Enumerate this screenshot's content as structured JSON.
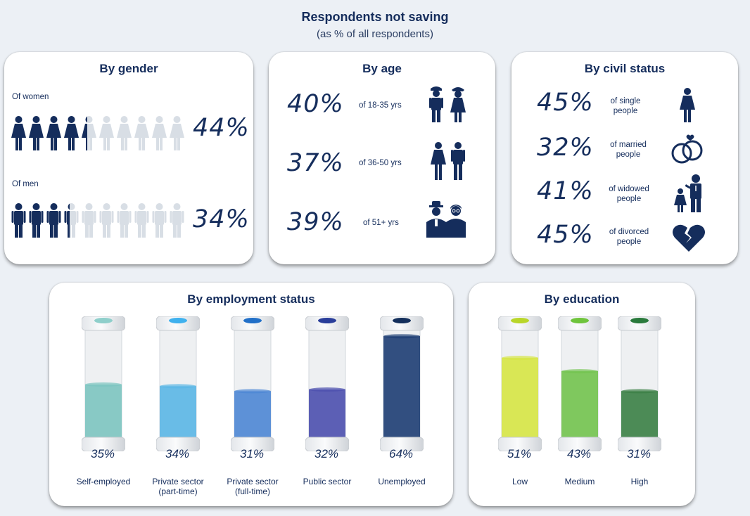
{
  "title": "Respondents not saving",
  "subtitle": "(as % of all respondents)",
  "colors": {
    "navy": "#152d5c",
    "grey_person": "#d8dee5"
  },
  "gender": {
    "title": "By gender",
    "women_label": "Of women",
    "women_pct": "44%",
    "women_value": 44,
    "men_label": "Of men",
    "men_pct": "34%",
    "men_value": 34
  },
  "age": {
    "title": "By age",
    "rows": [
      {
        "pct": "40%",
        "label": "of 18-35 yrs",
        "icon": "young-couple-icon"
      },
      {
        "pct": "37%",
        "label": "of 36-50 yrs",
        "icon": "adult-couple-icon"
      },
      {
        "pct": "39%",
        "label": "of 51+ yrs",
        "icon": "elderly-couple-icon"
      }
    ]
  },
  "civil": {
    "title": "By civil status",
    "rows": [
      {
        "pct": "45%",
        "label1": "of single",
        "label2": "people",
        "icon": "single-person-icon"
      },
      {
        "pct": "32%",
        "label1": "of married",
        "label2": "people",
        "icon": "wedding-rings-icon"
      },
      {
        "pct": "41%",
        "label1": "of widowed",
        "label2": "people",
        "icon": "widowed-parent-icon"
      },
      {
        "pct": "45%",
        "label1": "of divorced",
        "label2": "people",
        "icon": "broken-heart-icon"
      }
    ]
  },
  "employment": {
    "title": "By employment status",
    "tubes": [
      {
        "pct": "35%",
        "value": 35,
        "label1": "Self-employed",
        "label2": "",
        "color": "#7cc4c0",
        "cap": "#8fcfcb"
      },
      {
        "pct": "34%",
        "value": 34,
        "label1": "Private sector",
        "label2": "(part-time)",
        "color": "#5ab6e6",
        "cap": "#3fb1ee"
      },
      {
        "pct": "31%",
        "value": 31,
        "label1": "Private sector",
        "label2": "(full-time)",
        "color": "#4c86d4",
        "cap": "#2270c8"
      },
      {
        "pct": "32%",
        "value": 32,
        "label1": "Public sector",
        "label2": "",
        "color": "#4b4fae",
        "cap": "#2a3e9a"
      },
      {
        "pct": "64%",
        "value": 64,
        "label1": "Unemployed",
        "label2": "",
        "color": "#1d3d73",
        "cap": "#15305c"
      }
    ]
  },
  "education": {
    "title": "By education",
    "tubes": [
      {
        "pct": "51%",
        "value": 51,
        "label1": "Low",
        "label2": "",
        "color": "#d6e544",
        "cap": "#b9d62a"
      },
      {
        "pct": "43%",
        "value": 43,
        "label1": "Medium",
        "label2": "",
        "color": "#72c34e",
        "cap": "#6fc43c"
      },
      {
        "pct": "31%",
        "value": 31,
        "label1": "High",
        "label2": "",
        "color": "#3a7f45",
        "cap": "#2a7a3c"
      }
    ]
  },
  "chart_data": [
    {
      "type": "bar",
      "title": "By gender",
      "categories": [
        "Of women",
        "Of men"
      ],
      "values": [
        44,
        34
      ]
    },
    {
      "type": "bar",
      "title": "By age",
      "categories": [
        "of 18-35 yrs",
        "of 36-50 yrs",
        "of 51+ yrs"
      ],
      "values": [
        40,
        37,
        39
      ]
    },
    {
      "type": "bar",
      "title": "By civil status",
      "categories": [
        "of single people",
        "of married people",
        "of widowed people",
        "of divorced people"
      ],
      "values": [
        45,
        32,
        41,
        45
      ]
    },
    {
      "type": "bar",
      "title": "By employment status",
      "categories": [
        "Self-employed",
        "Private sector (part-time)",
        "Private sector (full-time)",
        "Public sector",
        "Unemployed"
      ],
      "values": [
        35,
        34,
        31,
        32,
        64
      ]
    },
    {
      "type": "bar",
      "title": "By education",
      "categories": [
        "Low",
        "Medium",
        "High"
      ],
      "values": [
        51,
        43,
        31
      ]
    }
  ]
}
